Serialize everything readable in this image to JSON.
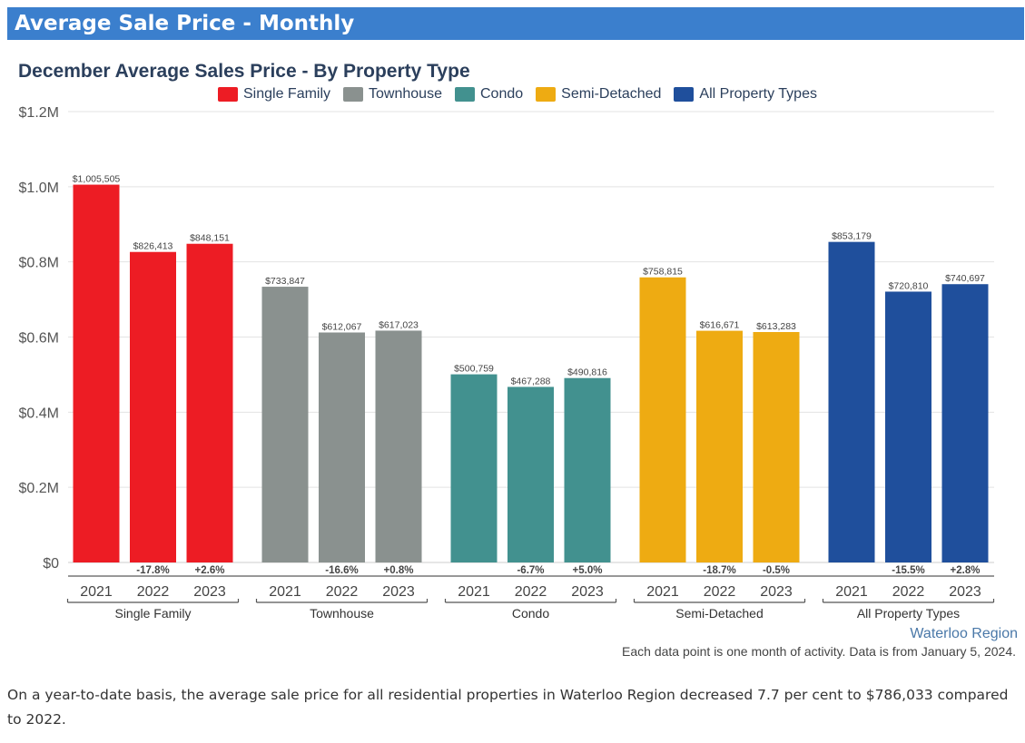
{
  "banner": {
    "title": "Average Sale Price - Monthly"
  },
  "legend": [
    {
      "label": "Single Family",
      "color": "#ed1c24"
    },
    {
      "label": "Townhouse",
      "color": "#8a918f"
    },
    {
      "label": "Condo",
      "color": "#42918f"
    },
    {
      "label": "Semi-Detached",
      "color": "#eeab12"
    },
    {
      "label": "All Property Types",
      "color": "#1f4f9c"
    }
  ],
  "chart_data": {
    "type": "bar",
    "title": "December Average Sales Price - By Property Type",
    "ylim": [
      0,
      1200000
    ],
    "yticks": [
      {
        "value": 0,
        "label": "$0"
      },
      {
        "value": 200000,
        "label": "$0.2M"
      },
      {
        "value": 400000,
        "label": "$0.4M"
      },
      {
        "value": 600000,
        "label": "$0.6M"
      },
      {
        "value": 800000,
        "label": "$0.8M"
      },
      {
        "value": 1000000,
        "label": "$1.0M"
      },
      {
        "value": 1200000,
        "label": "$1.2M"
      }
    ],
    "groups": [
      {
        "name": "Single Family",
        "color": "#ed1c24",
        "bars": [
          {
            "year": "2021",
            "value": 1005505,
            "label": "$1,005,505",
            "change": ""
          },
          {
            "year": "2022",
            "value": 826413,
            "label": "$826,413",
            "change": "-17.8%"
          },
          {
            "year": "2023",
            "value": 848151,
            "label": "$848,151",
            "change": "+2.6%"
          }
        ]
      },
      {
        "name": "Townhouse",
        "color": "#8a918f",
        "bars": [
          {
            "year": "2021",
            "value": 733847,
            "label": "$733,847",
            "change": ""
          },
          {
            "year": "2022",
            "value": 612067,
            "label": "$612,067",
            "change": "-16.6%"
          },
          {
            "year": "2023",
            "value": 617023,
            "label": "$617,023",
            "change": "+0.8%"
          }
        ]
      },
      {
        "name": "Condo",
        "color": "#42918f",
        "bars": [
          {
            "year": "2021",
            "value": 500759,
            "label": "$500,759",
            "change": ""
          },
          {
            "year": "2022",
            "value": 467288,
            "label": "$467,288",
            "change": "-6.7%"
          },
          {
            "year": "2023",
            "value": 490816,
            "label": "$490,816",
            "change": "+5.0%"
          }
        ]
      },
      {
        "name": "Semi-Detached",
        "color": "#eeab12",
        "bars": [
          {
            "year": "2021",
            "value": 758815,
            "label": "$758,815",
            "change": ""
          },
          {
            "year": "2022",
            "value": 616671,
            "label": "$616,671",
            "change": "-18.7%"
          },
          {
            "year": "2023",
            "value": 613283,
            "label": "$613,283",
            "change": "-0.5%"
          }
        ]
      },
      {
        "name": "All Property Types",
        "color": "#1f4f9c",
        "bars": [
          {
            "year": "2021",
            "value": 853179,
            "label": "$853,179",
            "change": ""
          },
          {
            "year": "2022",
            "value": 720810,
            "label": "$720,810",
            "change": "-15.5%"
          },
          {
            "year": "2023",
            "value": 740697,
            "label": "$740,697",
            "change": "+2.8%"
          }
        ]
      }
    ]
  },
  "region_label": "Waterloo Region",
  "footnote": "Each data point is one month of activity. Data is from January 5, 2024.",
  "paragraph": "On a year-to-date basis, the average sale price for all residential properties in Waterloo Region decreased 7.7 per cent to $786,033 compared to 2022."
}
